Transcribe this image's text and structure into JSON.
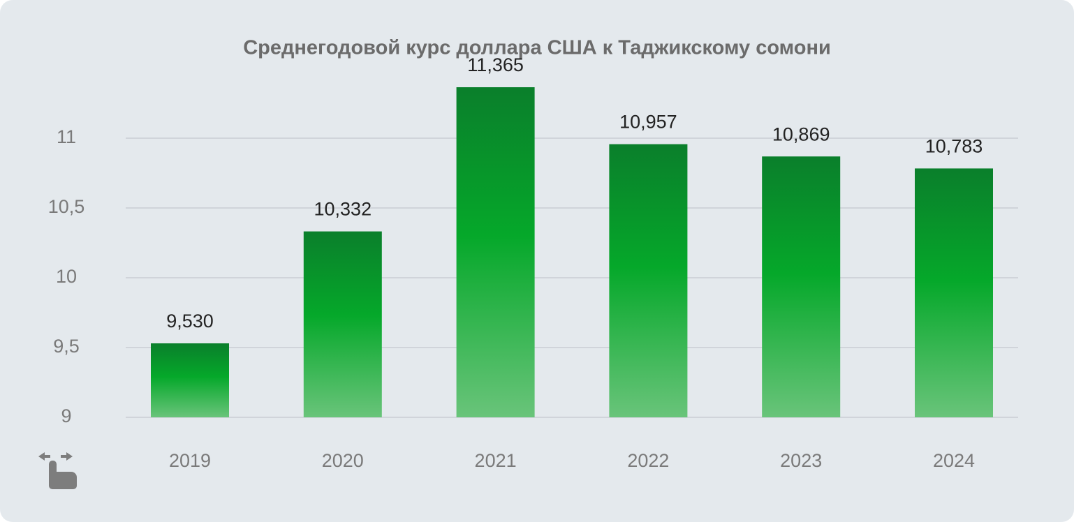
{
  "chart_data": {
    "type": "bar",
    "title": "Среднегодовой курс доллара США к Таджикскому сомони",
    "categories": [
      "2019",
      "2020",
      "2021",
      "2022",
      "2023",
      "2024"
    ],
    "values": [
      9.53,
      10.332,
      11.365,
      10.957,
      10.869,
      10.783
    ],
    "value_labels": [
      "9,530",
      "10,332",
      "11,365",
      "10,957",
      "10,869",
      "10,783"
    ],
    "color": "#05a82a",
    "ylim": [
      9,
      11.5
    ],
    "yticks": [
      9,
      {
        "value": 9.5,
        "label": "9,5"
      },
      10,
      {
        "value": 10.5,
        "label": "10,5"
      },
      11
    ],
    "grid": true
  }
}
